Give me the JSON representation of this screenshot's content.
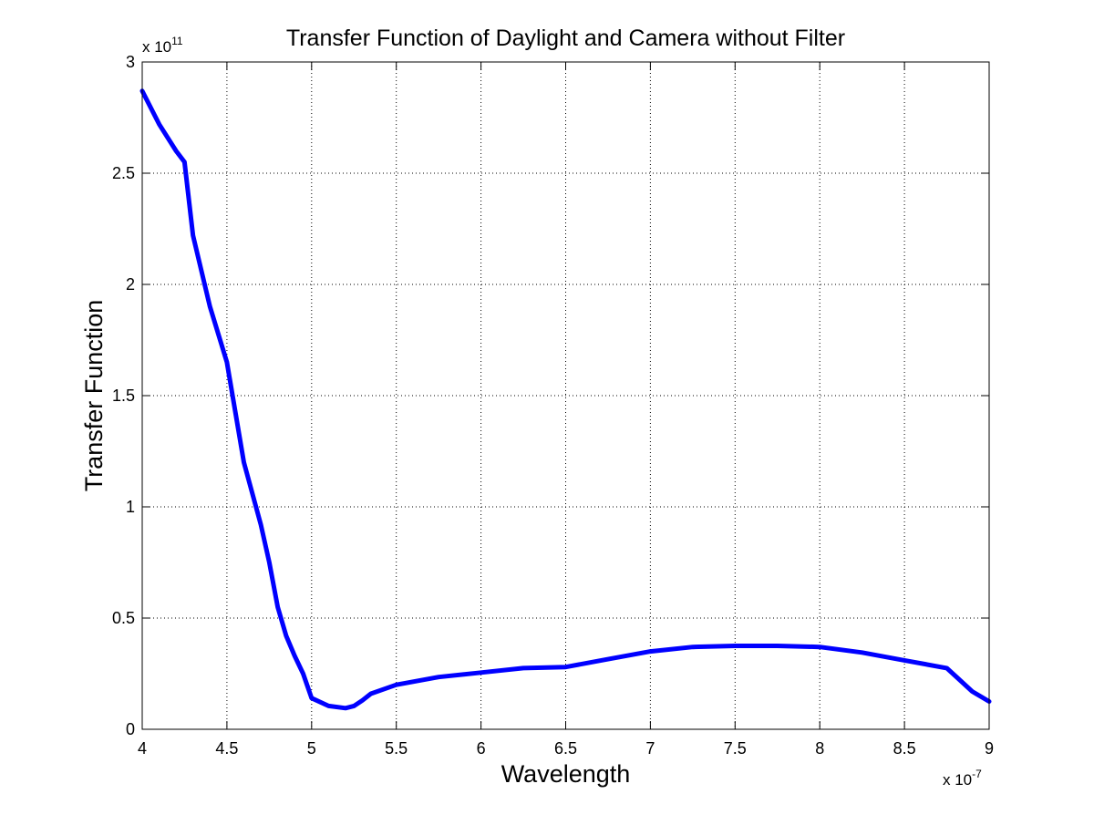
{
  "chart_data": {
    "type": "line",
    "title": "Transfer Function of Daylight and Camera without Filter",
    "xlabel": "Wavelength",
    "ylabel": "Transfer Function",
    "x_exponent_label": {
      "base": "x 10",
      "exp": "-7"
    },
    "y_exponent_label": {
      "base": "x 10",
      "exp": "11"
    },
    "xlim": [
      4,
      9
    ],
    "ylim": [
      0,
      3
    ],
    "x_ticks": [
      4,
      4.5,
      5,
      5.5,
      6,
      6.5,
      7,
      7.5,
      8,
      8.5,
      9
    ],
    "x_tick_labels": [
      "4",
      "4.5",
      "5",
      "5.5",
      "6",
      "6.5",
      "7",
      "7.5",
      "8",
      "8.5",
      "9"
    ],
    "y_ticks": [
      0,
      0.5,
      1,
      1.5,
      2,
      2.5,
      3
    ],
    "y_tick_labels": [
      "0",
      "0.5",
      "1",
      "1.5",
      "2",
      "2.5",
      "3"
    ],
    "grid": true,
    "series": [
      {
        "color": "#0000ff",
        "x": [
          4.0,
          4.1,
          4.2,
          4.25,
          4.3,
          4.4,
          4.5,
          4.6,
          4.7,
          4.75,
          4.8,
          4.85,
          4.9,
          4.95,
          5.0,
          5.1,
          5.2,
          5.25,
          5.3,
          5.35,
          5.5,
          5.75,
          6.0,
          6.25,
          6.5,
          6.75,
          7.0,
          7.25,
          7.5,
          7.75,
          8.0,
          8.25,
          8.5,
          8.75,
          8.8,
          8.9,
          9.0
        ],
        "y": [
          2.87,
          2.72,
          2.6,
          2.55,
          2.22,
          1.9,
          1.65,
          1.2,
          0.92,
          0.75,
          0.55,
          0.42,
          0.33,
          0.25,
          0.14,
          0.105,
          0.095,
          0.105,
          0.13,
          0.16,
          0.2,
          0.235,
          0.255,
          0.275,
          0.28,
          0.315,
          0.35,
          0.37,
          0.375,
          0.375,
          0.37,
          0.345,
          0.31,
          0.275,
          0.24,
          0.17,
          0.125
        ]
      }
    ]
  }
}
